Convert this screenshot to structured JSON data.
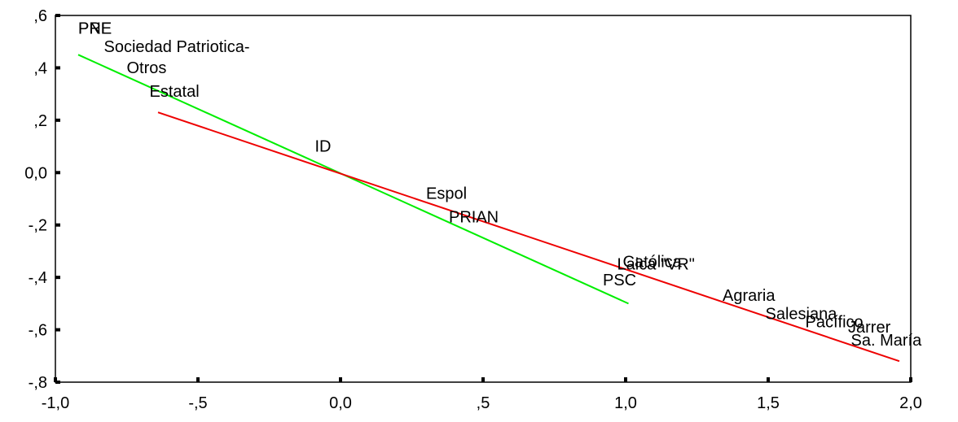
{
  "chart_data": {
    "type": "scatter",
    "title": "",
    "xlabel": "",
    "ylabel": "",
    "xlim": [
      -1.0,
      2.0
    ],
    "ylim": [
      -0.8,
      0.6
    ],
    "grid": false,
    "x_ticks": [
      {
        "value": -1.0,
        "label": "-1,0"
      },
      {
        "value": -0.5,
        "label": "-,5"
      },
      {
        "value": 0.0,
        "label": "0,0"
      },
      {
        "value": 0.5,
        "label": ",5"
      },
      {
        "value": 1.0,
        "label": "1,0"
      },
      {
        "value": 1.5,
        "label": "1,5"
      },
      {
        "value": 2.0,
        "label": "2,0"
      }
    ],
    "y_ticks": [
      {
        "value": 0.6,
        "label": ",6"
      },
      {
        "value": 0.4,
        "label": ",4"
      },
      {
        "value": 0.2,
        "label": ",2"
      },
      {
        "value": 0.0,
        "label": "0,0"
      },
      {
        "value": -0.2,
        "label": "-,2"
      },
      {
        "value": -0.4,
        "label": "-,4"
      },
      {
        "value": -0.6,
        "label": "-,6"
      },
      {
        "value": -0.8,
        "label": "-,8"
      }
    ],
    "points": [
      {
        "label": "PNE",
        "x": -0.92,
        "y": 0.53
      },
      {
        "label": "PRE",
        "x": -0.92,
        "y": 0.53
      },
      {
        "label": "Sociedad Patriotica-",
        "x": -0.83,
        "y": 0.46
      },
      {
        "label": "Otros",
        "x": -0.75,
        "y": 0.38
      },
      {
        "label": "Estatal",
        "x": -0.67,
        "y": 0.29
      },
      {
        "label": "ID",
        "x": -0.09,
        "y": 0.08
      },
      {
        "label": "Espol",
        "x": 0.3,
        "y": -0.1
      },
      {
        "label": "PRIAN",
        "x": 0.38,
        "y": -0.19
      },
      {
        "label": "Católica",
        "x": 0.99,
        "y": -0.36
      },
      {
        "label": "Laica \"VR\"",
        "x": 0.97,
        "y": -0.37
      },
      {
        "label": "PSC",
        "x": 0.92,
        "y": -0.43
      },
      {
        "label": "Agraria",
        "x": 1.34,
        "y": -0.49
      },
      {
        "label": "Salesiana",
        "x": 1.49,
        "y": -0.56
      },
      {
        "label": "Pacífico",
        "x": 1.63,
        "y": -0.59
      },
      {
        "label": "Jarrer",
        "x": 1.78,
        "y": -0.61
      },
      {
        "label": "Sa. María",
        "x": 1.79,
        "y": -0.66
      }
    ],
    "lines": [
      {
        "color": "#00ee00",
        "x": [
          -0.92,
          1.01
        ],
        "y": [
          0.45,
          -0.5
        ]
      },
      {
        "color": "#ee0000",
        "x": [
          -0.64,
          1.96
        ],
        "y": [
          0.23,
          -0.72
        ]
      }
    ]
  }
}
